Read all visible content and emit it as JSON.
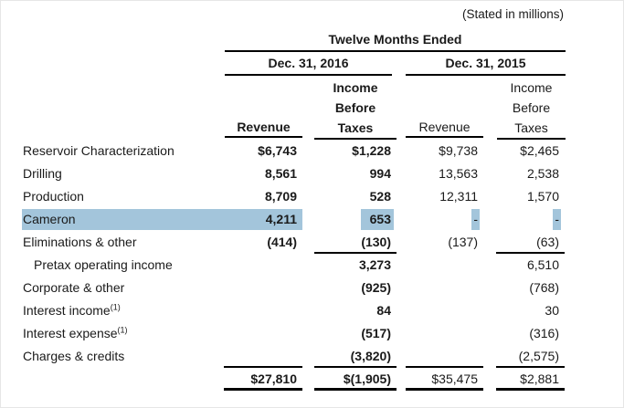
{
  "note": "(Stated in millions)",
  "header": {
    "span_title": "Twelve Months Ended",
    "periods": [
      "Dec. 31, 2016",
      "Dec. 31, 2015"
    ],
    "revenue_label_2016": "Revenue",
    "revenue_label_2015": "Revenue",
    "income_before_taxes_lines": [
      "Income",
      "Before",
      "Taxes"
    ]
  },
  "colors": {
    "highlight": "#a3c5db"
  },
  "rows": [
    {
      "label": "Reservoir Characterization",
      "values": [
        "$6,743",
        "$1,228",
        "$9,738",
        "$2,465"
      ]
    },
    {
      "label": "Drilling",
      "values": [
        "8,561",
        "994",
        "13,563",
        "2,538"
      ]
    },
    {
      "label": "Production",
      "values": [
        "8,709",
        "528",
        "12,311",
        "1,570"
      ]
    },
    {
      "label": "Cameron",
      "values": [
        "4,211",
        "653",
        "-",
        "-"
      ],
      "highlighted": true
    },
    {
      "label": "Eliminations & other",
      "values": [
        "(414)",
        "(130)",
        "(137)",
        "(63)"
      ]
    },
    {
      "label": "Pretax operating income",
      "values": [
        "",
        "3,273",
        "",
        "6,510"
      ],
      "indent": true
    },
    {
      "label": "Corporate & other",
      "values": [
        "",
        "(925)",
        "",
        "(768)"
      ]
    },
    {
      "label": "Interest income",
      "sup": "(1)",
      "values": [
        "",
        "84",
        "",
        "30"
      ]
    },
    {
      "label": "Interest expense",
      "sup": "(1)",
      "values": [
        "",
        "(517)",
        "",
        "(316)"
      ]
    },
    {
      "label": "Charges & credits",
      "values": [
        "",
        "(3,820)",
        "",
        "(2,575)"
      ]
    },
    {
      "label": "",
      "values": [
        "$27,810",
        "$(1,905)",
        "$35,475",
        "$2,881"
      ],
      "total": true
    }
  ]
}
